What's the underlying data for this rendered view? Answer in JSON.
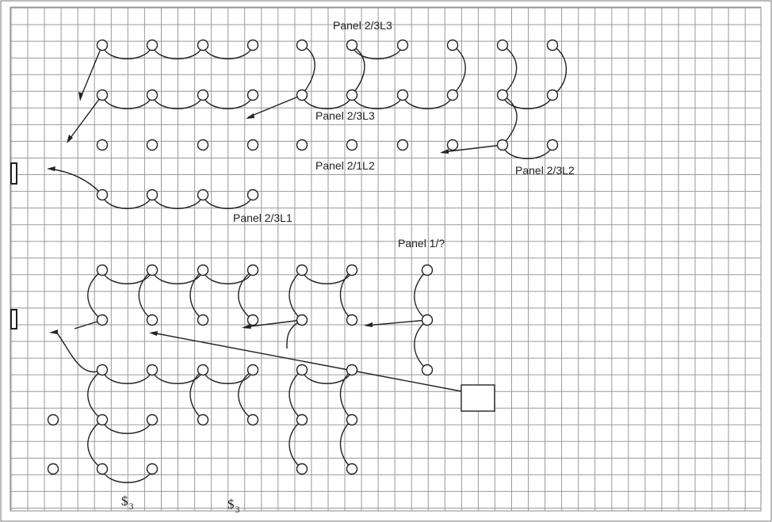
{
  "labels": {
    "panel_top": "Panel 2/3L3",
    "panel_mid": "Panel 2/3L3",
    "panel_2_1l2": "Panel 2/1L2",
    "panel_2_3l2": "Panel 2/3L2",
    "panel_2_3l1": "Panel 2/3L1",
    "panel_1": "Panel 1/?"
  },
  "switches": [
    {
      "symbol": "$",
      "subscript": "3"
    },
    {
      "symbol": "$",
      "subscript": "3"
    }
  ],
  "colors": {
    "grid": "#9a9a9a",
    "ink": "#222222",
    "border": "#555555"
  }
}
